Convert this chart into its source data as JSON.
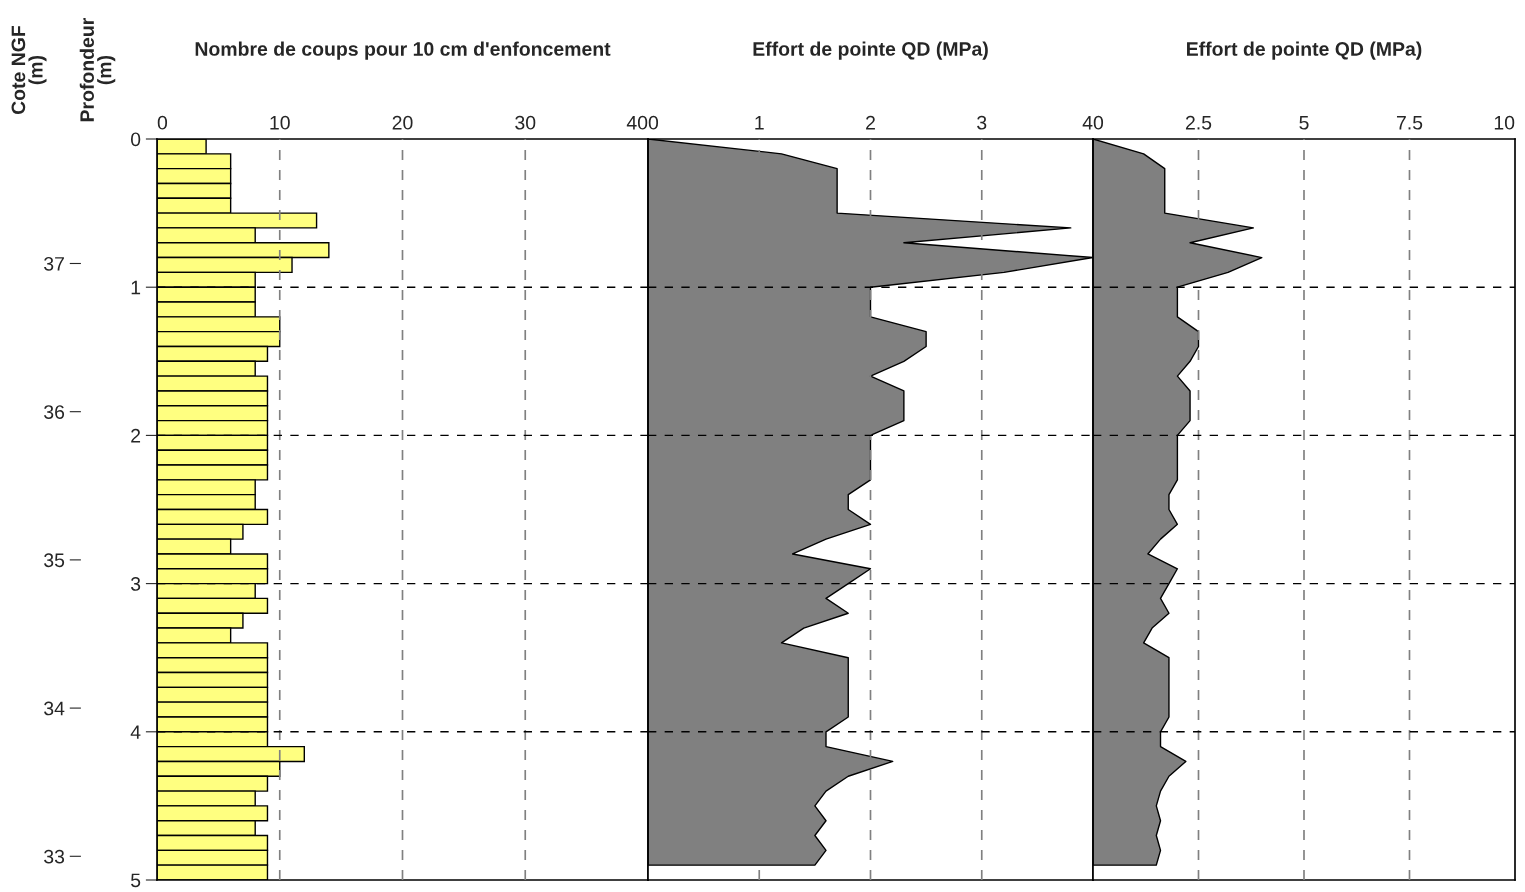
{
  "chart_data": [
    {
      "type": "bar",
      "orientation": "horizontal",
      "title": "Nombre de coups pour 10 cm d'enfoncement",
      "ylabel": "Profondeur\n(m)",
      "y2label": "Cote NGF\n(m)",
      "x": [
        0.05,
        0.15,
        0.25,
        0.35,
        0.45,
        0.55,
        0.65,
        0.75,
        0.85,
        0.95,
        1.05,
        1.15,
        1.25,
        1.35,
        1.45,
        1.55,
        1.65,
        1.75,
        1.85,
        1.95,
        2.05,
        2.15,
        2.25,
        2.35,
        2.45,
        2.55,
        2.65,
        2.75,
        2.85,
        2.95,
        3.05,
        3.15,
        3.25,
        3.35,
        3.45,
        3.55,
        3.65,
        3.75,
        3.85,
        3.95,
        4.05,
        4.15,
        4.25,
        4.35,
        4.45,
        4.55,
        4.65,
        4.75,
        4.85,
        4.95
      ],
      "values": [
        4,
        6,
        6,
        6,
        6,
        13,
        8,
        14,
        11,
        8,
        8,
        8,
        10,
        10,
        9,
        8,
        9,
        9,
        9,
        9,
        9,
        9,
        9,
        8,
        8,
        9,
        7,
        6,
        9,
        9,
        8,
        9,
        7,
        6,
        9,
        9,
        9,
        9,
        9,
        9,
        9,
        12,
        10,
        9,
        8,
        9,
        8,
        9,
        9,
        9
      ],
      "color": "#ffff80",
      "xlim": [
        0,
        40
      ],
      "xticks": [
        0,
        10,
        20,
        30,
        40
      ],
      "ylim": [
        5,
        0
      ],
      "yticks": [
        0,
        1,
        2,
        3,
        4,
        5
      ],
      "y2lim": [
        32.84,
        37.84
      ],
      "y2ticks": [
        33,
        34,
        35,
        36,
        37
      ],
      "grid": true
    },
    {
      "type": "area",
      "orientation": "horizontal",
      "title": "Effort de pointe QD (MPa)",
      "tick_labels": "x",
      "x": [
        0,
        0.1,
        0.2,
        0.5,
        0.6,
        0.7,
        0.8,
        0.9,
        1.0,
        1.2,
        1.3,
        1.4,
        1.5,
        1.6,
        1.7,
        1.9,
        2.0,
        2.3,
        2.4,
        2.5,
        2.6,
        2.7,
        2.8,
        2.9,
        3.0,
        3.1,
        3.2,
        3.3,
        3.4,
        3.5,
        3.9,
        4.0,
        4.1,
        4.2,
        4.3,
        4.4,
        4.5,
        4.6,
        4.7,
        4.8,
        4.9
      ],
      "values": [
        0,
        1.2,
        1.7,
        1.7,
        3.8,
        2.3,
        4.0,
        3.2,
        2.0,
        2.0,
        2.5,
        2.5,
        2.3,
        2.0,
        2.3,
        2.3,
        2.0,
        2.0,
        1.8,
        1.8,
        2.0,
        1.6,
        1.3,
        2.0,
        1.8,
        1.6,
        1.8,
        1.4,
        1.2,
        1.8,
        1.8,
        1.6,
        1.6,
        2.2,
        1.8,
        1.6,
        1.5,
        1.6,
        1.5,
        1.6,
        1.5
      ],
      "color": "#808080",
      "xlim": [
        0,
        4
      ],
      "xticks": [
        0,
        1,
        2,
        3,
        4
      ],
      "ylim": [
        5,
        0
      ],
      "yticks": [
        0,
        1,
        2,
        3,
        4,
        5
      ],
      "grid": true
    },
    {
      "type": "area",
      "orientation": "horizontal",
      "title": "Effort de pointe QD (MPa)",
      "tick_labels": "x",
      "x": [
        0,
        0.1,
        0.2,
        0.5,
        0.6,
        0.7,
        0.8,
        0.9,
        1.0,
        1.2,
        1.3,
        1.4,
        1.5,
        1.6,
        1.7,
        1.9,
        2.0,
        2.3,
        2.4,
        2.5,
        2.6,
        2.7,
        2.8,
        2.9,
        3.0,
        3.1,
        3.2,
        3.3,
        3.4,
        3.5,
        3.9,
        4.0,
        4.1,
        4.2,
        4.3,
        4.4,
        4.5,
        4.6,
        4.7,
        4.8,
        4.9
      ],
      "values": [
        0,
        1.2,
        1.7,
        1.7,
        3.8,
        2.3,
        4.0,
        3.2,
        2.0,
        2.0,
        2.5,
        2.5,
        2.3,
        2.0,
        2.3,
        2.3,
        2.0,
        2.0,
        1.8,
        1.8,
        2.0,
        1.6,
        1.3,
        2.0,
        1.8,
        1.6,
        1.8,
        1.4,
        1.2,
        1.8,
        1.8,
        1.6,
        1.6,
        2.2,
        1.8,
        1.6,
        1.5,
        1.6,
        1.5,
        1.6,
        1.5
      ],
      "color": "#808080",
      "xlim": [
        0,
        10
      ],
      "xticks": [
        0,
        2.5,
        5,
        7.5,
        10
      ],
      "ylim": [
        5,
        0
      ],
      "yticks": [
        0,
        1,
        2,
        3,
        4,
        5
      ],
      "grid": true
    }
  ]
}
